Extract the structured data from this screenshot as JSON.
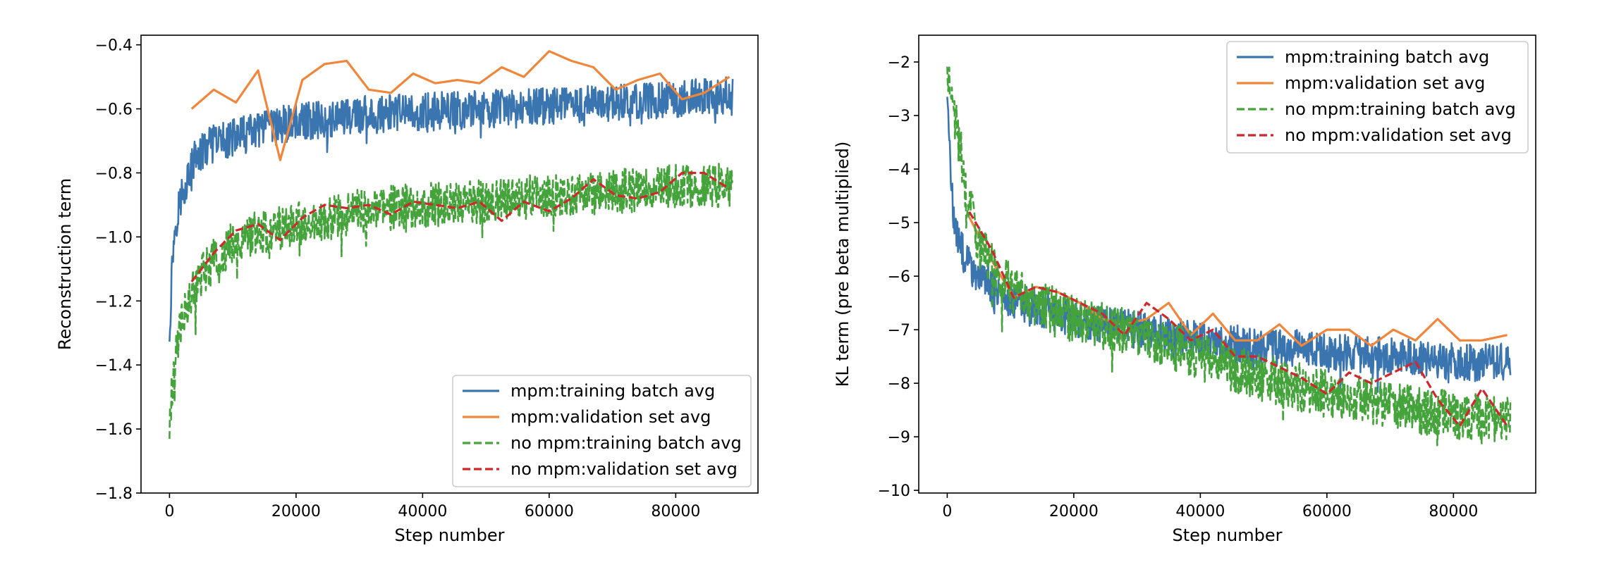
{
  "colors": {
    "mpm_train": "#3a75b0",
    "mpm_val": "#f0863a",
    "nompm_train": "#44a33a",
    "nompm_val": "#d0272c"
  },
  "chart_data": [
    {
      "type": "line",
      "xlabel": "Step number",
      "ylabel": "Reconstruction term",
      "xlim": [
        -4500,
        93000
      ],
      "ylim": [
        -1.8,
        -0.37
      ],
      "xticks": [
        0,
        20000,
        40000,
        60000,
        80000
      ],
      "xtick_labels": [
        "0",
        "20000",
        "40000",
        "60000",
        "80000"
      ],
      "yticks": [
        -1.8,
        -1.6,
        -1.4,
        -1.2,
        -1.0,
        -0.8,
        -0.6,
        -0.4
      ],
      "ytick_labels": [
        "−1.8",
        "−1.6",
        "−1.4",
        "−1.2",
        "−1.0",
        "−0.8",
        "−0.6",
        "−0.4"
      ],
      "grid": false,
      "legend_position": "lower-right",
      "series": [
        {
          "name": "mpm:training batch avg",
          "style": "solid",
          "noisy": true,
          "amplitude": 0.06,
          "x": [
            0,
            500,
            1000,
            2000,
            4000,
            6000,
            8000,
            12000,
            20000,
            30000,
            40000,
            50000,
            60000,
            70000,
            80000,
            89000
          ],
          "values": [
            -1.3,
            -1.05,
            -0.95,
            -0.86,
            -0.76,
            -0.72,
            -0.7,
            -0.68,
            -0.64,
            -0.62,
            -0.61,
            -0.6,
            -0.59,
            -0.58,
            -0.57,
            -0.56
          ]
        },
        {
          "name": "mpm:validation set avg",
          "style": "solid",
          "noisy": false,
          "x": [
            3500,
            7000,
            10500,
            14000,
            17500,
            21000,
            24500,
            28000,
            31500,
            35000,
            38500,
            42000,
            45500,
            49000,
            52500,
            56000,
            60000,
            63500,
            67000,
            70500,
            74000,
            77500,
            81000,
            84500,
            88500
          ],
          "values": [
            -0.6,
            -0.54,
            -0.58,
            -0.48,
            -0.76,
            -0.51,
            -0.46,
            -0.45,
            -0.54,
            -0.55,
            -0.49,
            -0.52,
            -0.51,
            -0.52,
            -0.47,
            -0.5,
            -0.42,
            -0.45,
            -0.47,
            -0.54,
            -0.51,
            -0.49,
            -0.57,
            -0.55,
            -0.5
          ]
        },
        {
          "name": "no mpm:training batch avg",
          "style": "dashed",
          "noisy": true,
          "amplitude": 0.07,
          "x": [
            0,
            500,
            1000,
            2000,
            4000,
            6000,
            8000,
            12000,
            20000,
            30000,
            40000,
            50000,
            60000,
            70000,
            80000,
            89000
          ],
          "values": [
            -1.6,
            -1.45,
            -1.35,
            -1.25,
            -1.15,
            -1.1,
            -1.05,
            -1.0,
            -0.96,
            -0.92,
            -0.9,
            -0.89,
            -0.87,
            -0.86,
            -0.84,
            -0.84
          ]
        },
        {
          "name": "no mpm:validation set avg",
          "style": "dashed",
          "noisy": false,
          "x": [
            3500,
            7000,
            10500,
            14000,
            17500,
            21000,
            24500,
            28000,
            31500,
            35000,
            38500,
            42000,
            45500,
            49000,
            52500,
            56000,
            60000,
            63500,
            67000,
            70500,
            74000,
            77500,
            81000,
            84500,
            88500
          ],
          "values": [
            -1.14,
            -1.05,
            -0.98,
            -0.96,
            -1.01,
            -0.94,
            -0.9,
            -0.91,
            -0.9,
            -0.93,
            -0.89,
            -0.9,
            -0.91,
            -0.89,
            -0.95,
            -0.89,
            -0.92,
            -0.88,
            -0.82,
            -0.87,
            -0.88,
            -0.86,
            -0.8,
            -0.8,
            -0.85
          ]
        }
      ]
    },
    {
      "type": "line",
      "xlabel": "Step number",
      "ylabel": "KL term (pre beta multiplied)",
      "xlim": [
        -4500,
        93000
      ],
      "ylim": [
        -10.05,
        -1.5
      ],
      "xticks": [
        0,
        20000,
        40000,
        60000,
        80000
      ],
      "xtick_labels": [
        "0",
        "20000",
        "40000",
        "60000",
        "80000"
      ],
      "yticks": [
        -10,
        -9,
        -8,
        -7,
        -6,
        -5,
        -4,
        -3,
        -2
      ],
      "ytick_labels": [
        "−10",
        "−9",
        "−8",
        "−7",
        "−6",
        "−5",
        "−4",
        "−3",
        "−2"
      ],
      "grid": false,
      "legend_position": "upper-right",
      "series": [
        {
          "name": "mpm:training batch avg",
          "style": "solid",
          "noisy": true,
          "amplitude": 0.35,
          "x": [
            0,
            300,
            800,
            1500,
            3000,
            5000,
            8000,
            12000,
            20000,
            30000,
            40000,
            50000,
            60000,
            70000,
            80000,
            89000
          ],
          "values": [
            -2.5,
            -3.5,
            -4.6,
            -5.3,
            -5.7,
            -6.0,
            -6.3,
            -6.5,
            -6.8,
            -7.0,
            -7.2,
            -7.3,
            -7.4,
            -7.5,
            -7.6,
            -7.6
          ]
        },
        {
          "name": "mpm:validation set avg",
          "style": "solid",
          "noisy": false,
          "x": [
            3500,
            7000,
            10500,
            14000,
            17500,
            21000,
            24500,
            28000,
            31500,
            35000,
            38500,
            42000,
            45500,
            49000,
            52500,
            56000,
            60000,
            63500,
            67000,
            70500,
            74000,
            77500,
            81000,
            84500,
            88500
          ],
          "values": [
            -4.9,
            -5.7,
            -6.4,
            -6.2,
            -6.3,
            -6.5,
            -6.8,
            -6.9,
            -6.8,
            -6.5,
            -7.1,
            -6.7,
            -7.2,
            -7.2,
            -6.9,
            -7.3,
            -7.0,
            -7.0,
            -7.3,
            -7.0,
            -7.2,
            -6.8,
            -7.2,
            -7.2,
            -7.1
          ]
        },
        {
          "name": "no mpm:training batch avg",
          "style": "dashed",
          "noisy": true,
          "amplitude": 0.45,
          "x": [
            0,
            300,
            800,
            1500,
            3000,
            5000,
            8000,
            12000,
            20000,
            30000,
            40000,
            50000,
            60000,
            70000,
            80000,
            89000
          ],
          "values": [
            -1.9,
            -2.3,
            -2.8,
            -3.2,
            -4.4,
            -5.4,
            -6.0,
            -6.4,
            -6.8,
            -7.1,
            -7.5,
            -7.9,
            -8.2,
            -8.4,
            -8.6,
            -8.7
          ]
        },
        {
          "name": "no mpm:validation set avg",
          "style": "dashed",
          "noisy": false,
          "x": [
            3500,
            7000,
            10500,
            14000,
            17500,
            21000,
            24500,
            28000,
            31500,
            35000,
            38500,
            42000,
            45500,
            49000,
            52500,
            56000,
            60000,
            63500,
            67000,
            70500,
            74000,
            77500,
            81000,
            84500,
            88500
          ],
          "values": [
            -4.8,
            -5.5,
            -6.4,
            -6.2,
            -6.3,
            -6.5,
            -6.7,
            -7.1,
            -6.5,
            -6.8,
            -7.2,
            -7.0,
            -7.5,
            -7.5,
            -7.7,
            -7.9,
            -8.2,
            -7.8,
            -8.0,
            -7.8,
            -7.6,
            -8.3,
            -8.8,
            -8.1,
            -8.8
          ]
        }
      ]
    }
  ]
}
